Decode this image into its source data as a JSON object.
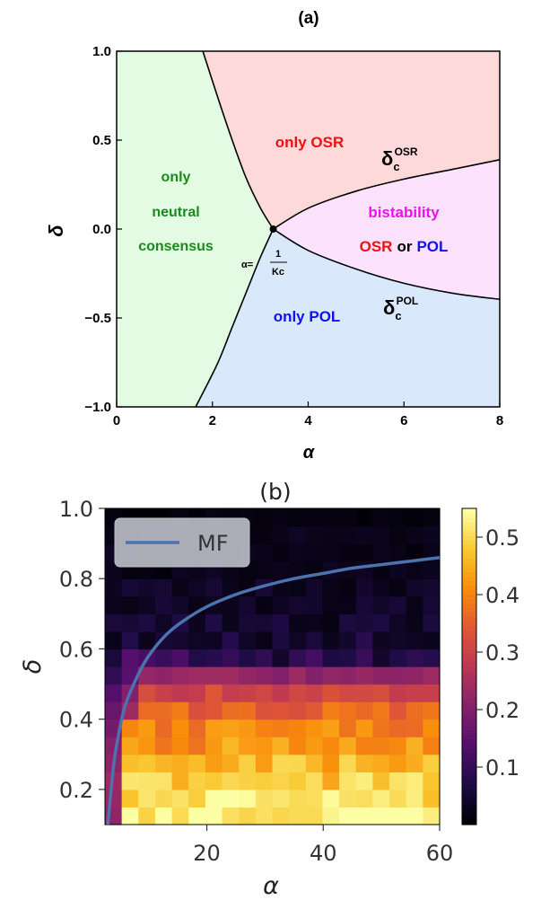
{
  "chart_data": [
    {
      "type": "area",
      "title": "(a)",
      "xlabel": "α",
      "ylabel": "δ",
      "xlim": [
        0,
        8
      ],
      "ylim": [
        -1.0,
        1.0
      ],
      "x_ticks": [
        "0",
        "2",
        "4",
        "6",
        "8"
      ],
      "y_ticks": [
        "1.0",
        "0.5",
        "0.0",
        "−0.5",
        "−1.0"
      ],
      "x_tick_values": [
        0,
        2,
        4,
        6,
        8
      ],
      "y_tick_values": [
        1.0,
        0.5,
        0.0,
        -0.5,
        -1.0
      ],
      "critical_point": {
        "alpha": 3.27,
        "delta": 0.0,
        "label_lhs": "α=",
        "label_num": "1",
        "label_den": "Kc"
      },
      "boundaries": [
        {
          "name": "δc OSR",
          "x": [
            3.27,
            4.0,
            5.0,
            6.0,
            7.0,
            8.0
          ],
          "y": [
            0.0,
            0.117,
            0.213,
            0.281,
            0.335,
            0.39
          ]
        },
        {
          "name": "δc POL",
          "x": [
            3.27,
            4.0,
            5.0,
            6.0,
            7.0,
            8.0
          ],
          "y": [
            0.0,
            -0.12,
            -0.225,
            -0.305,
            -0.36,
            -0.395
          ]
        },
        {
          "name": "upper-left",
          "x": [
            3.27,
            3.0,
            2.7,
            2.4,
            2.1,
            1.8
          ],
          "y": [
            0.0,
            0.12,
            0.29,
            0.51,
            0.75,
            1.0
          ]
        },
        {
          "name": "lower-left",
          "x": [
            3.27,
            3.0,
            2.7,
            2.4,
            2.1,
            1.65
          ],
          "y": [
            0.0,
            -0.16,
            -0.36,
            -0.56,
            -0.76,
            -1.0
          ]
        }
      ],
      "regions": [
        {
          "key": "neutral",
          "lines": [
            "only",
            "neutral",
            "consensus"
          ],
          "color": "#e2fbe2",
          "text_color": "#1a8a1a"
        },
        {
          "key": "osr",
          "lines": [
            "only OSR"
          ],
          "color": "#fdd9d9",
          "text_color": "#ee1111"
        },
        {
          "key": "bistability",
          "lines": [
            "bistability"
          ],
          "color": "#fde2fd",
          "text_color": "#ee11ee"
        },
        {
          "key": "pol",
          "lines": [
            "only POL"
          ],
          "color": "#d9e9fb",
          "text_color": "#1111ee"
        }
      ],
      "bistability_sub": {
        "osr": "OSR",
        "or": "or",
        "pol": "POL"
      },
      "curve_labels": {
        "osr_base": "δ",
        "osr_sub": "c",
        "osr_sup": "OSR",
        "pol_base": "δ",
        "pol_sub": "c",
        "pol_sup": "POL"
      }
    },
    {
      "type": "heatmap",
      "title": "(b)",
      "xlabel": "α",
      "ylabel": "δ",
      "xlim": [
        2.5,
        60
      ],
      "ylim": [
        0.1,
        1.0
      ],
      "x_ticks": [
        "20",
        "40",
        "60"
      ],
      "x_tick_values": [
        20,
        40,
        60
      ],
      "y_ticks": [
        "1.0",
        "0.8",
        "0.6",
        "0.4",
        "0.2"
      ],
      "y_tick_values": [
        1.0,
        0.8,
        0.6,
        0.4,
        0.2
      ],
      "colorbar_ticks": [
        "0.5",
        "0.4",
        "0.3",
        "0.2",
        "0.1"
      ],
      "colorbar_tick_values": [
        0.5,
        0.4,
        0.3,
        0.2,
        0.1
      ],
      "colorbar_range": [
        0.0,
        0.55
      ],
      "colormap": "inferno",
      "legend": {
        "label": "MF",
        "position": "top-left"
      },
      "mf_line": {
        "name": "MF",
        "x": [
          3,
          4,
          5,
          6,
          8,
          10,
          13,
          16,
          20,
          25,
          30,
          35,
          40,
          45,
          50,
          55,
          60
        ],
        "y": [
          0.1,
          0.27,
          0.37,
          0.44,
          0.52,
          0.58,
          0.64,
          0.68,
          0.72,
          0.755,
          0.78,
          0.8,
          0.815,
          0.83,
          0.84,
          0.85,
          0.86
        ],
        "color": "#4c72b0"
      },
      "grid_columns": 20,
      "grid_rows": 18,
      "row_profile_bottom_to_top": [
        0.54,
        0.52,
        0.49,
        0.46,
        0.42,
        0.4,
        0.36,
        0.31,
        0.22,
        0.08,
        0.05,
        0.04,
        0.03,
        0.03,
        0.02,
        0.02,
        0.02,
        0.01
      ]
    }
  ]
}
